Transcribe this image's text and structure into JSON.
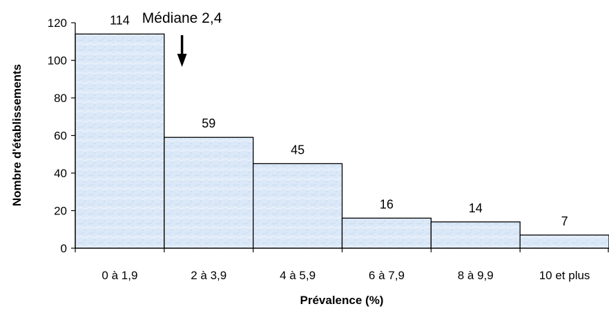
{
  "chart_data": {
    "type": "bar",
    "title": "",
    "xlabel": "Prévalence (%)",
    "ylabel": "Nombre d'établissements",
    "categories": [
      "0 à 1,9",
      "2 à 3,9",
      "4 à 5,9",
      "6 à 7,9",
      "8 à 9,9",
      "10 et plus"
    ],
    "values": [
      114,
      59,
      45,
      16,
      14,
      7
    ],
    "data_labels": [
      "114",
      "59",
      "45",
      "16",
      "14",
      "7"
    ],
    "ylim": [
      0,
      120
    ],
    "yticks": [
      0,
      20,
      40,
      60,
      80,
      100,
      120
    ],
    "grid": false,
    "legend": "none",
    "bar_fill": "#dbe8f7",
    "bar_stroke": "#000000",
    "annotation": {
      "text": "Médiane 2,4",
      "x_value": 2.4,
      "arrow": "down"
    }
  }
}
